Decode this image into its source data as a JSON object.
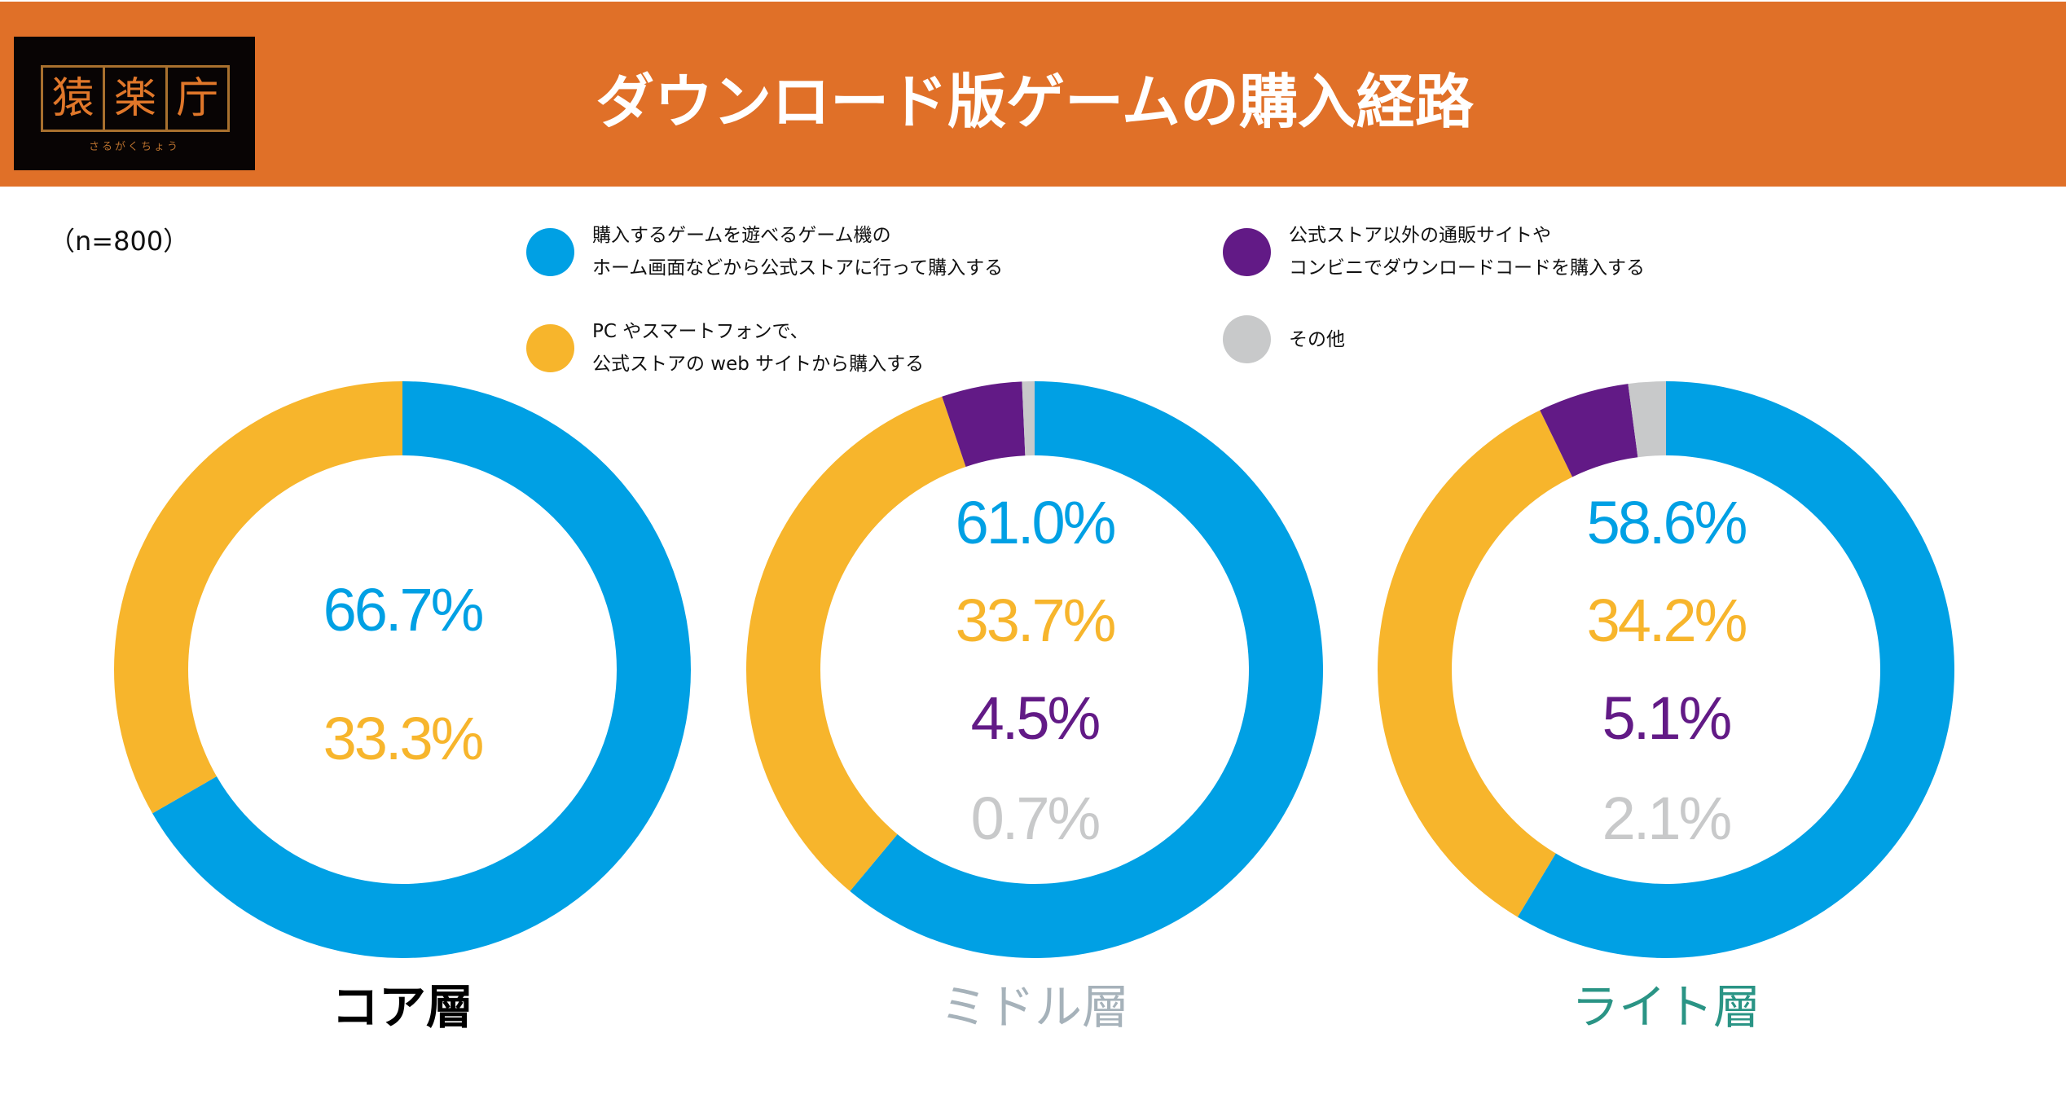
{
  "header": {
    "title": "ダウンロード版ゲームの購入経路",
    "logo": {
      "chars": [
        "猿",
        "楽",
        "庁"
      ],
      "reading": "さるがくちょう"
    },
    "bg_color": "#e07028"
  },
  "sample_size": "（n=800）",
  "legend": [
    {
      "lines": [
        "購入するゲームを遊べるゲーム機の",
        "ホーム画面などから公式ストアに行って購入する"
      ],
      "color": "#00a0e4"
    },
    {
      "lines": [
        "PC やスマートフォンで、",
        "公式ストアの web サイトから購入する"
      ],
      "color": "#f7b52c"
    },
    {
      "lines": [
        "公式ストア以外の通販サイトや",
        "コンビニでダウンロードコードを購入する"
      ],
      "color": "#621a86"
    },
    {
      "lines": [
        "その他"
      ],
      "color": "#c8c9ca"
    }
  ],
  "chart_data": [
    {
      "type": "pie",
      "variant": "donut",
      "title": "コア層",
      "title_color": "#000000",
      "categories": [
        "ゲーム機の公式ストア",
        "公式ストアのwebサイト"
      ],
      "values": [
        66.7,
        33.3
      ],
      "labels": [
        "66.7%",
        "33.3%"
      ],
      "colors": [
        "#00a0e4",
        "#f7b52c"
      ],
      "start": "top",
      "direction": "clockwise"
    },
    {
      "type": "pie",
      "variant": "donut",
      "title": "ミドル層",
      "title_color": "#a6b2ba",
      "categories": [
        "ゲーム機の公式ストア",
        "公式ストアのwebサイト",
        "通販サイト・コンビニ",
        "その他"
      ],
      "values": [
        61.0,
        33.7,
        4.5,
        0.7
      ],
      "labels": [
        "61.0%",
        "33.7%",
        "4.5%",
        "0.7%"
      ],
      "colors": [
        "#00a0e4",
        "#f7b52c",
        "#621a86",
        "#c8c9ca"
      ],
      "start": "top",
      "direction": "clockwise"
    },
    {
      "type": "pie",
      "variant": "donut",
      "title": "ライト層",
      "title_color": "#2a9485",
      "categories": [
        "ゲーム機の公式ストア",
        "公式ストアのwebサイト",
        "通販サイト・コンビニ",
        "その他"
      ],
      "values": [
        58.6,
        34.2,
        5.1,
        2.1
      ],
      "labels": [
        "58.6%",
        "34.2%",
        "5.1%",
        "2.1%"
      ],
      "colors": [
        "#00a0e4",
        "#f7b52c",
        "#621a86",
        "#c8c9ca"
      ],
      "start": "top",
      "direction": "clockwise"
    }
  ]
}
